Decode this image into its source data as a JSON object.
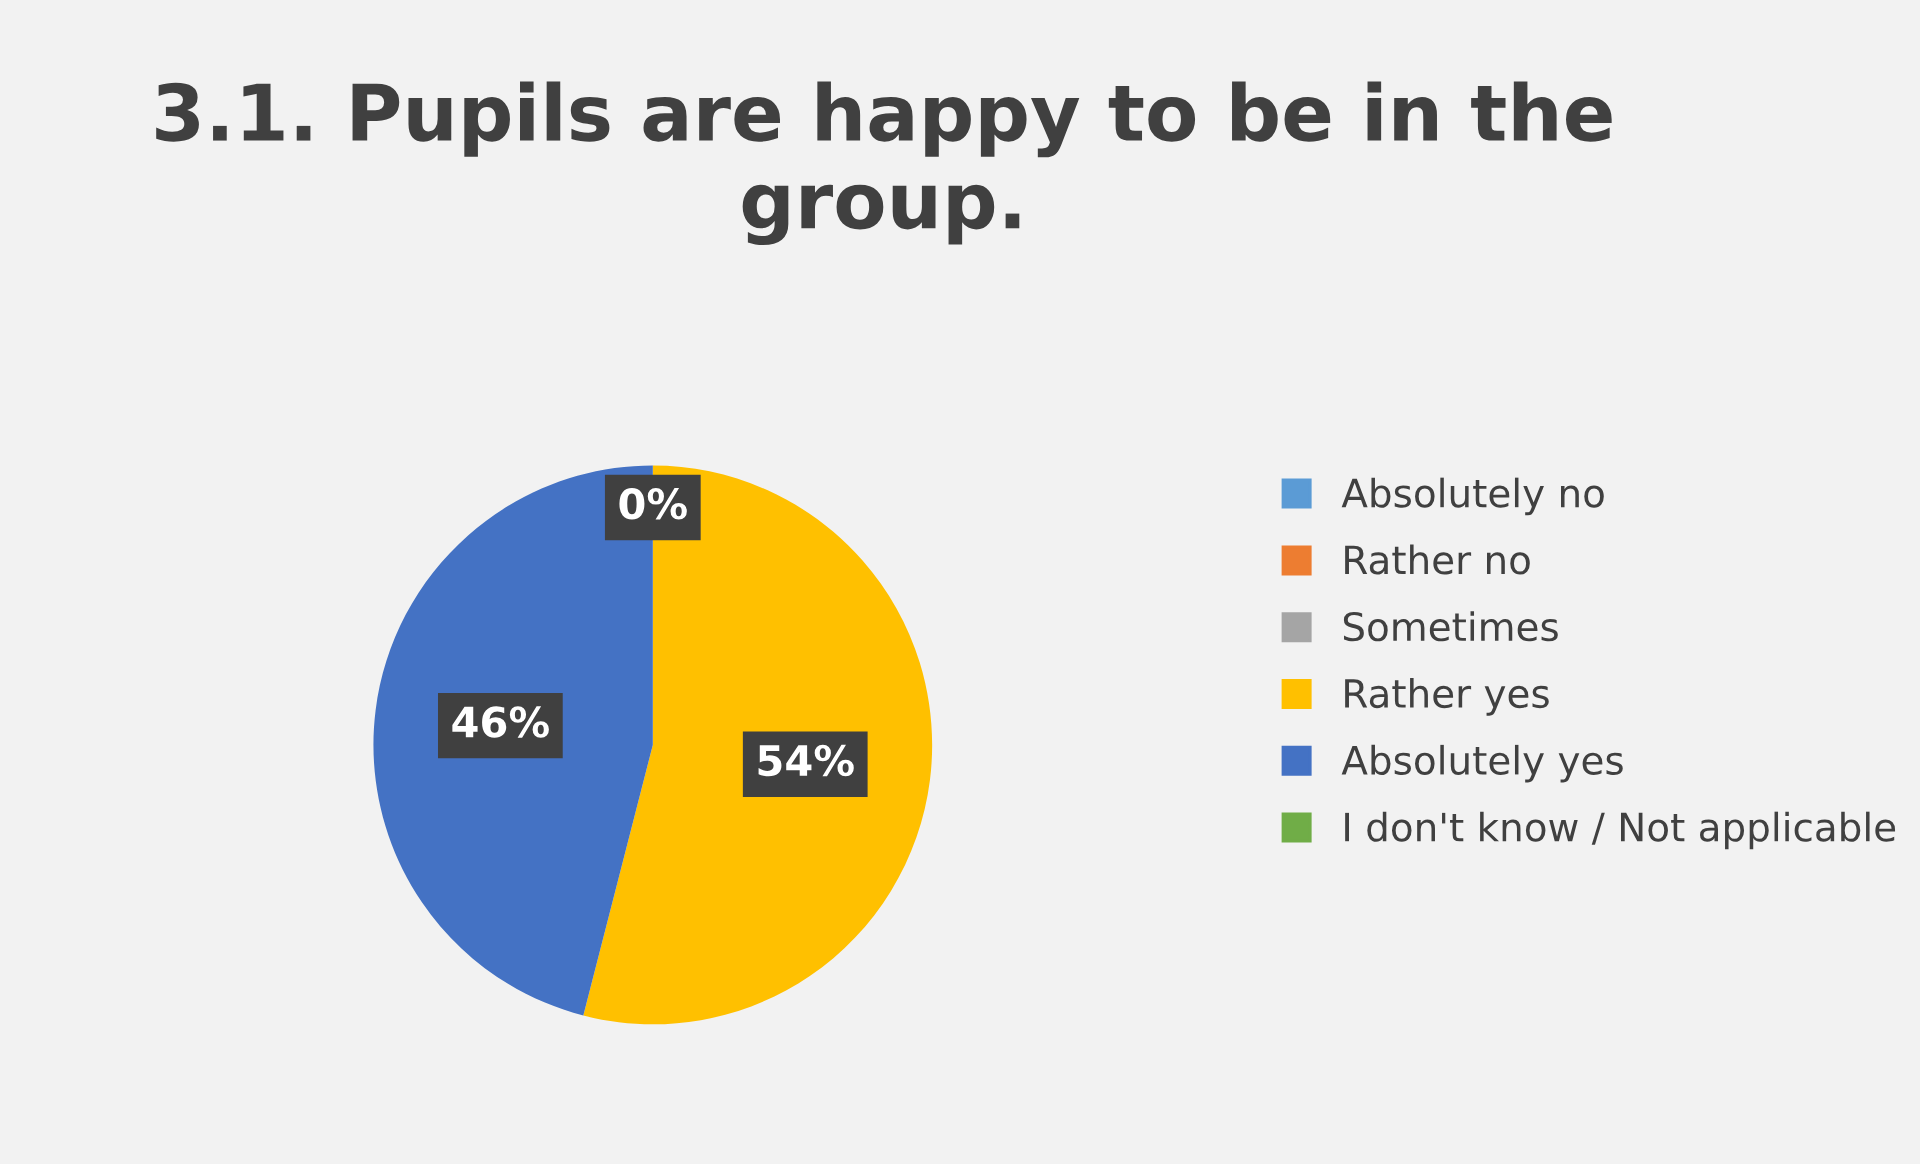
{
  "chart_data": {
    "type": "pie",
    "title": "3.1. Pupils are happy to be in the group.",
    "categories": [
      "Absolutely no",
      "Rather no",
      "Sometimes",
      "Rather yes",
      "Absolutely yes",
      "I don't know / Not applicable"
    ],
    "values": [
      0,
      0,
      0,
      54,
      46,
      0
    ],
    "colors": [
      "#5b9bd5",
      "#ed7d31",
      "#a5a5a5",
      "#ffc000",
      "#4472c4",
      "#70ad47"
    ],
    "value_labels": [
      "0%",
      null,
      null,
      "54%",
      "46%",
      null
    ],
    "legend": "right"
  }
}
